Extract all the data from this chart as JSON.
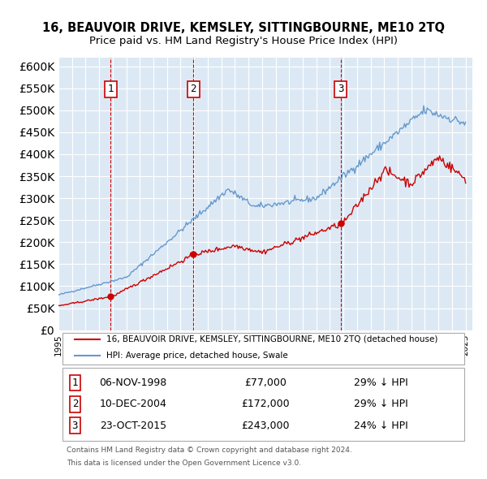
{
  "title": "16, BEAUVOIR DRIVE, KEMSLEY, SITTINGBOURNE, ME10 2TQ",
  "subtitle": "Price paid vs. HM Land Registry's House Price Index (HPI)",
  "legend_property": "16, BEAUVOIR DRIVE, KEMSLEY, SITTINGBOURNE, ME10 2TQ (detached house)",
  "legend_hpi": "HPI: Average price, detached house, Swale",
  "footer1": "Contains HM Land Registry data © Crown copyright and database right 2024.",
  "footer2": "This data is licensed under the Open Government Licence v3.0.",
  "sales": [
    {
      "num": 1,
      "date": "06-NOV-1998",
      "price": 77000,
      "pct": "29%",
      "x_year": 1998.85
    },
    {
      "num": 2,
      "date": "10-DEC-2004",
      "price": 172000,
      "pct": "29%",
      "x_year": 2004.94
    },
    {
      "num": 3,
      "date": "23-OCT-2015",
      "price": 243000,
      "pct": "24%",
      "x_year": 2015.81
    }
  ],
  "property_color": "#cc0000",
  "hpi_color": "#6699cc",
  "sale_marker_color": "#cc0000",
  "vline_color": "#cc0000",
  "background_color": "#dce9f5",
  "ylim": [
    0,
    620000
  ],
  "xlim_start": 1995.0,
  "xlim_end": 2025.5
}
